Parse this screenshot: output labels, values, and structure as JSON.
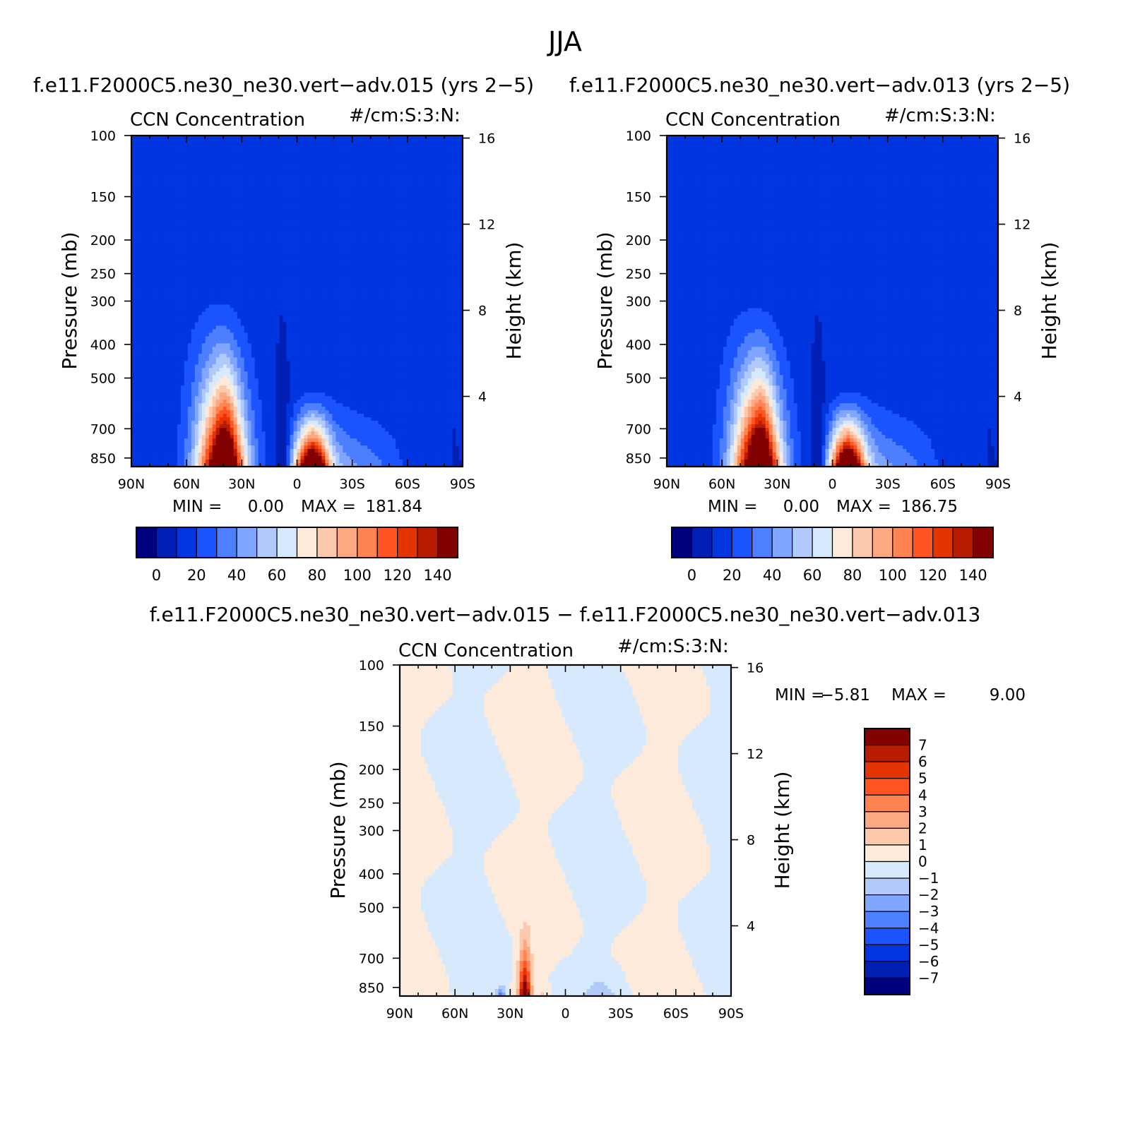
{
  "figure": {
    "title": "JJA",
    "diff_title": "f.e11.F2000C5.ne30_ne30.vert−adv.015  −  f.e11.F2000C5.ne30_ne30.vert−adv.013"
  },
  "chart_data": [
    {
      "type": "heatmap",
      "case": "f.e11.F2000C5.ne30_ne30.vert−adv.015 (yrs 2−5)",
      "left_string": "CCN Concentration",
      "right_string": "#/cm:S:3:N:",
      "ylabel": "Pressure (mb)",
      "y2label": "Height (km)",
      "x_ticks": [
        "90N",
        "60N",
        "30N",
        "0",
        "30S",
        "60S",
        "90S"
      ],
      "y_ticks": [
        "100",
        "150",
        "200",
        "250",
        "300",
        "400",
        "500",
        "700",
        "850"
      ],
      "y2_ticks": [
        "16",
        "12",
        "8",
        "4"
      ],
      "ylim": [
        100,
        900
      ],
      "y_scale": "log",
      "min_label": "MIN =",
      "min_value": "0.00",
      "max_label": "MAX =",
      "max_value": "181.84",
      "colorbar": {
        "orientation": "horizontal",
        "labels": [
          "0",
          "20",
          "40",
          "60",
          "80",
          "100",
          "120",
          "140"
        ],
        "colors": [
          "#00007f",
          "#001fb4",
          "#0035e0",
          "#1b54ff",
          "#4d7fff",
          "#80a6ff",
          "#b1c9fb",
          "#d7e9fd",
          "#fdeadb",
          "#fcc9ad",
          "#fca882",
          "#ff8452",
          "#ff5523",
          "#e43500",
          "#b81c00",
          "#820000"
        ]
      },
      "fields": {
        "background": "#001fb4",
        "sea_blob": {
          "lat": 40,
          "peak": 182,
          "top_pressure": 255,
          "plateau_lat": [
            15,
            45
          ],
          "plateau_top_mb": 480
        },
        "land_blob": {
          "lat": -8,
          "peak": 175,
          "top_pressure": 500
        },
        "antarctic_cutoff_lat": -84
      }
    },
    {
      "type": "heatmap",
      "case": "f.e11.F2000C5.ne30_ne30.vert−adv.013 (yrs 2−5)",
      "left_string": "CCN Concentration",
      "right_string": "#/cm:S:3:N:",
      "ylabel": "Pressure (mb)",
      "y2label": "Height (km)",
      "x_ticks": [
        "90N",
        "60N",
        "30N",
        "0",
        "30S",
        "60S",
        "90S"
      ],
      "y_ticks": [
        "100",
        "150",
        "200",
        "250",
        "300",
        "400",
        "500",
        "700",
        "850"
      ],
      "y2_ticks": [
        "16",
        "12",
        "8",
        "4"
      ],
      "ylim": [
        100,
        900
      ],
      "y_scale": "log",
      "min_label": "MIN =",
      "min_value": "0.00",
      "max_label": "MAX =",
      "max_value": "186.75",
      "colorbar": {
        "orientation": "horizontal",
        "labels": [
          "0",
          "20",
          "40",
          "60",
          "80",
          "100",
          "120",
          "140"
        ],
        "colors": [
          "#00007f",
          "#001fb4",
          "#0035e0",
          "#1b54ff",
          "#4d7fff",
          "#80a6ff",
          "#b1c9fb",
          "#d7e9fd",
          "#fdeadb",
          "#fcc9ad",
          "#fca882",
          "#ff8452",
          "#ff5523",
          "#e43500",
          "#b81c00",
          "#820000"
        ]
      },
      "fields": {
        "background": "#001fb4",
        "sea_blob": {
          "lat": 40,
          "peak": 187,
          "top_pressure": 265,
          "plateau_lat": [
            15,
            45
          ],
          "plateau_top_mb": 480
        },
        "land_blob": {
          "lat": -8,
          "peak": 180,
          "top_pressure": 500
        },
        "antarctic_cutoff_lat": -84
      }
    },
    {
      "type": "heatmap",
      "case": "difference",
      "left_string": "CCN Concentration",
      "right_string": "#/cm:S:3:N:",
      "ylabel": "Pressure (mb)",
      "y2label": "Height (km)",
      "x_ticks": [
        "90N",
        "60N",
        "30N",
        "0",
        "30S",
        "60S",
        "90S"
      ],
      "y_ticks": [
        "100",
        "150",
        "200",
        "250",
        "300",
        "400",
        "500",
        "700",
        "850"
      ],
      "y2_ticks": [
        "16",
        "12",
        "8",
        "4"
      ],
      "ylim": [
        100,
        900
      ],
      "y_scale": "log",
      "min_label": "MIN =",
      "min_value": "−5.81",
      "max_label": "MAX =",
      "max_value": "9.00",
      "colorbar": {
        "orientation": "vertical",
        "labels": [
          "7",
          "6",
          "5",
          "4",
          "3",
          "2",
          "1",
          "0",
          "−1",
          "−2",
          "−3",
          "−4",
          "−5",
          "−6",
          "−7"
        ],
        "colors": [
          "#820000",
          "#b81c00",
          "#e43500",
          "#ff5523",
          "#ff8452",
          "#fca882",
          "#fcc9ad",
          "#fdeadb",
          "#d7e9fd",
          "#b1c9fb",
          "#80a6ff",
          "#4d7fff",
          "#1b54ff",
          "#0035e0",
          "#001fb4",
          "#00007f"
        ]
      },
      "fields": {
        "positive_fill": "#fdeadb",
        "negative_fill": "#d7e9fd",
        "max_anomaly": {
          "lat": 22,
          "value": 9.0
        },
        "min_anomaly": {
          "lat": 33,
          "value": -5.81
        }
      }
    }
  ]
}
